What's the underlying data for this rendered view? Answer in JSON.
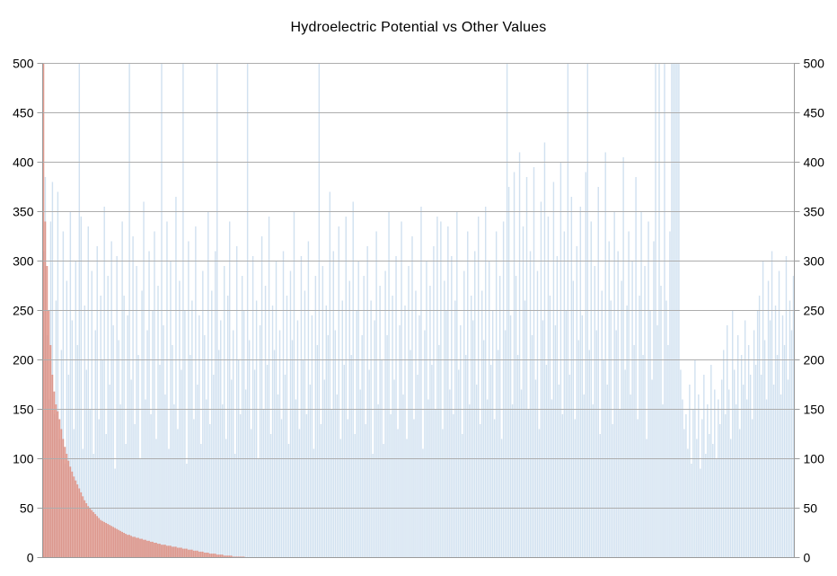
{
  "chart_data": {
    "type": "bar",
    "title": "Hydroelectric Potential vs Other Values",
    "xlabel": "",
    "ylabel": "",
    "grid": true,
    "legend_position": "none",
    "x_axis": {
      "tick_labels": []
    },
    "y_axis": {
      "min": 0,
      "max": 500,
      "tick_step": 50,
      "ticks": [
        0,
        50,
        100,
        150,
        200,
        250,
        300,
        350,
        400,
        450,
        500
      ],
      "sides": [
        "left",
        "right"
      ]
    },
    "series": [
      {
        "name": "Other Values",
        "color": "#cfdfef",
        "type": "bar",
        "values": [
          310,
          385,
          225,
          160,
          340,
          380,
          145,
          260,
          370,
          120,
          210,
          330,
          95,
          280,
          185,
          350,
          240,
          130,
          300,
          215,
          500,
          345,
          110,
          255,
          190,
          335,
          150,
          290,
          105,
          230,
          315,
          140,
          265,
          200,
          355,
          125,
          285,
          175,
          320,
          235,
          90,
          305,
          220,
          155,
          340,
          265,
          115,
          245,
          500,
          180,
          325,
          135,
          295,
          205,
          100,
          270,
          360,
          160,
          230,
          310,
          145,
          250,
          330,
          120,
          275,
          195,
          500,
          235,
          165,
          340,
          110,
          300,
          215,
          155,
          365,
          130,
          280,
          190,
          500,
          250,
          95,
          320,
          205,
          260,
          140,
          335,
          175,
          245,
          115,
          290,
          225,
          160,
          350,
          135,
          270,
          185,
          310,
          500,
          210,
          240,
          155,
          295,
          120,
          265,
          340,
          180,
          230,
          105,
          315,
          200,
          145,
          285,
          250,
          170,
          500,
          220,
          130,
          305,
          190,
          260,
          100,
          235,
          325,
          150,
          275,
          195,
          345,
          125,
          255,
          210,
          300,
          165,
          230,
          140,
          310,
          185,
          265,
          115,
          290,
          220,
          350,
          160,
          240,
          130,
          305,
          200,
          270,
          145,
          320,
          175,
          245,
          110,
          285,
          215,
          500,
          135,
          295,
          180,
          255,
          225,
          370,
          150,
          310,
          230,
          165,
          335,
          120,
          260,
          195,
          345,
          140,
          280,
          205,
          360,
          125,
          250,
          300,
          170,
          225,
          285,
          135,
          315,
          190,
          260,
          105,
          240,
          330,
          155,
          275,
          200,
          115,
          290,
          225,
          350,
          145,
          265,
          180,
          305,
          130,
          235,
          340,
          165,
          255,
          120,
          295,
          210,
          325,
          140,
          270,
          185,
          245,
          355,
          110,
          230,
          300,
          160,
          275,
          195,
          315,
          150,
          345,
          215,
          340,
          130,
          280,
          250,
          335,
          170,
          305,
          145,
          260,
          350,
          190,
          235,
          125,
          290,
          205,
          330,
          155,
          265,
          240,
          310,
          175,
          345,
          135,
          270,
          220,
          355,
          160,
          300,
          195,
          250,
          140,
          330,
          210,
          285,
          120,
          340,
          230,
          500,
          375,
          245,
          155,
          390,
          285,
          205,
          410,
          170,
          335,
          260,
          385,
          150,
          310,
          225,
          395,
          180,
          290,
          130,
          360,
          240,
          420,
          195,
          345,
          265,
          160,
          380,
          235,
          305,
          175,
          400,
          145,
          330,
          250,
          500,
          185,
          365,
          280,
          140,
          315,
          220,
          355,
          245,
          165,
          390,
          500,
          210,
          340,
          155,
          295,
          230,
          375,
          125,
          270,
          200,
          410,
          175,
          320,
          260,
          135,
          350,
          230,
          310,
          150,
          280,
          405,
          190,
          255,
          330,
          165,
          300,
          215,
          385,
          140,
          265,
          350,
          205,
          295,
          120,
          340,
          250,
          180,
          320,
          500,
          235,
          500,
          275,
          155,
          500,
          260,
          215,
          330,
          500,
          500,
          500,
          500,
          500,
          190,
          160,
          130,
          145,
          110,
          175,
          95,
          150,
          200,
          120,
          165,
          90,
          140,
          185,
          105,
          155,
          125,
          195,
          115,
          170,
          100,
          160,
          135,
          180,
          210,
          145,
          235,
          170,
          120,
          250,
          190,
          155,
          225,
          130,
          205,
          175,
          240,
          160,
          215,
          185,
          140,
          230,
          195,
          250,
          265,
          185,
          300,
          220,
          160,
          280,
          240,
          310,
          175,
          255,
          205,
          290,
          165,
          245,
          215,
          305,
          180,
          260,
          230,
          285
        ]
      },
      {
        "name": "Hydroelectric Potential",
        "color": "#dd8a7b",
        "type": "bar-sorted-desc",
        "values": [
          500,
          340,
          295,
          250,
          215,
          185,
          168,
          155,
          148,
          140,
          130,
          120,
          112,
          105,
          98,
          92,
          87,
          82,
          78,
          74,
          70,
          66,
          62,
          58,
          55,
          52,
          50,
          48,
          46,
          44,
          42,
          40,
          38,
          37,
          36,
          35,
          34,
          33,
          32,
          31,
          30,
          29,
          28,
          27,
          26,
          25,
          24,
          23,
          23,
          22,
          21,
          21,
          20,
          20,
          19,
          19,
          18,
          18,
          17,
          17,
          16,
          16,
          15,
          15,
          14,
          14,
          13,
          13,
          13,
          12,
          12,
          12,
          11,
          11,
          11,
          10,
          10,
          10,
          9,
          9,
          9,
          8,
          8,
          8,
          7,
          7,
          7,
          6,
          6,
          6,
          5,
          5,
          5,
          4,
          4,
          4,
          4,
          3,
          3,
          3,
          3,
          2,
          2,
          2,
          2,
          2,
          1,
          1,
          1,
          1,
          1,
          1,
          1,
          0,
          0,
          0
        ]
      }
    ],
    "plot": {
      "background": "#ffffff",
      "gridline_color": "#adadad",
      "axis_color": "#9a9a9a",
      "bar_opacity": 0.95,
      "overlay_opacity": 0.85
    }
  }
}
